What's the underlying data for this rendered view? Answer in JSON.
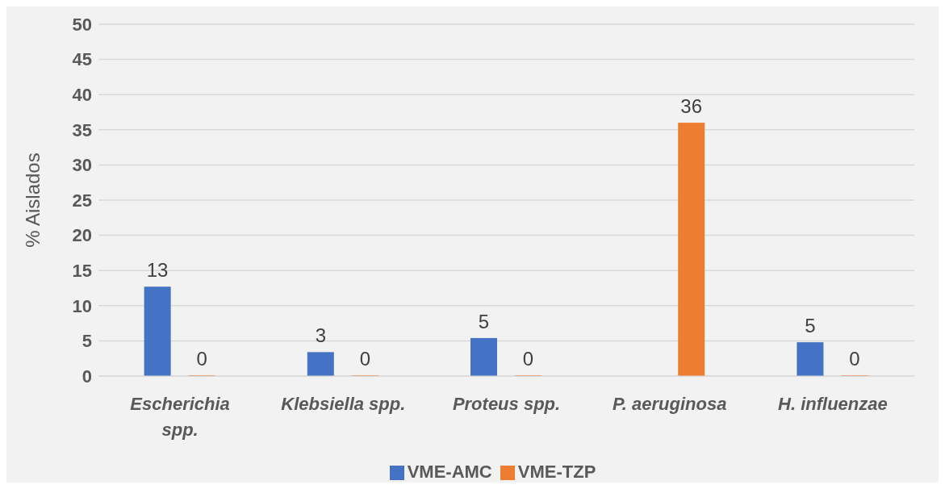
{
  "chart_data": {
    "type": "bar",
    "ylabel": "% Aislados",
    "categories": [
      "Escherichia spp.",
      "Klebsiella spp.",
      "Proteus spp.",
      "P. aeruginosa",
      "H. influenzae"
    ],
    "series": [
      {
        "name": "VME-AMC",
        "color": "#4472c4",
        "values": [
          12.7,
          3.4,
          5.4,
          null,
          4.8
        ],
        "value_labels": [
          "13",
          "3",
          "5",
          null,
          "5"
        ]
      },
      {
        "name": "VME-TZP",
        "color": "#ed7d31",
        "values": [
          0,
          0,
          0,
          36,
          0
        ],
        "value_labels": [
          "0",
          "0",
          "0",
          "36",
          "0"
        ]
      }
    ],
    "ylim": [
      0,
      50
    ],
    "yticks": [
      0,
      5,
      10,
      15,
      20,
      25,
      30,
      35,
      40,
      45,
      50
    ],
    "grid": "y",
    "legend": "bottom"
  }
}
